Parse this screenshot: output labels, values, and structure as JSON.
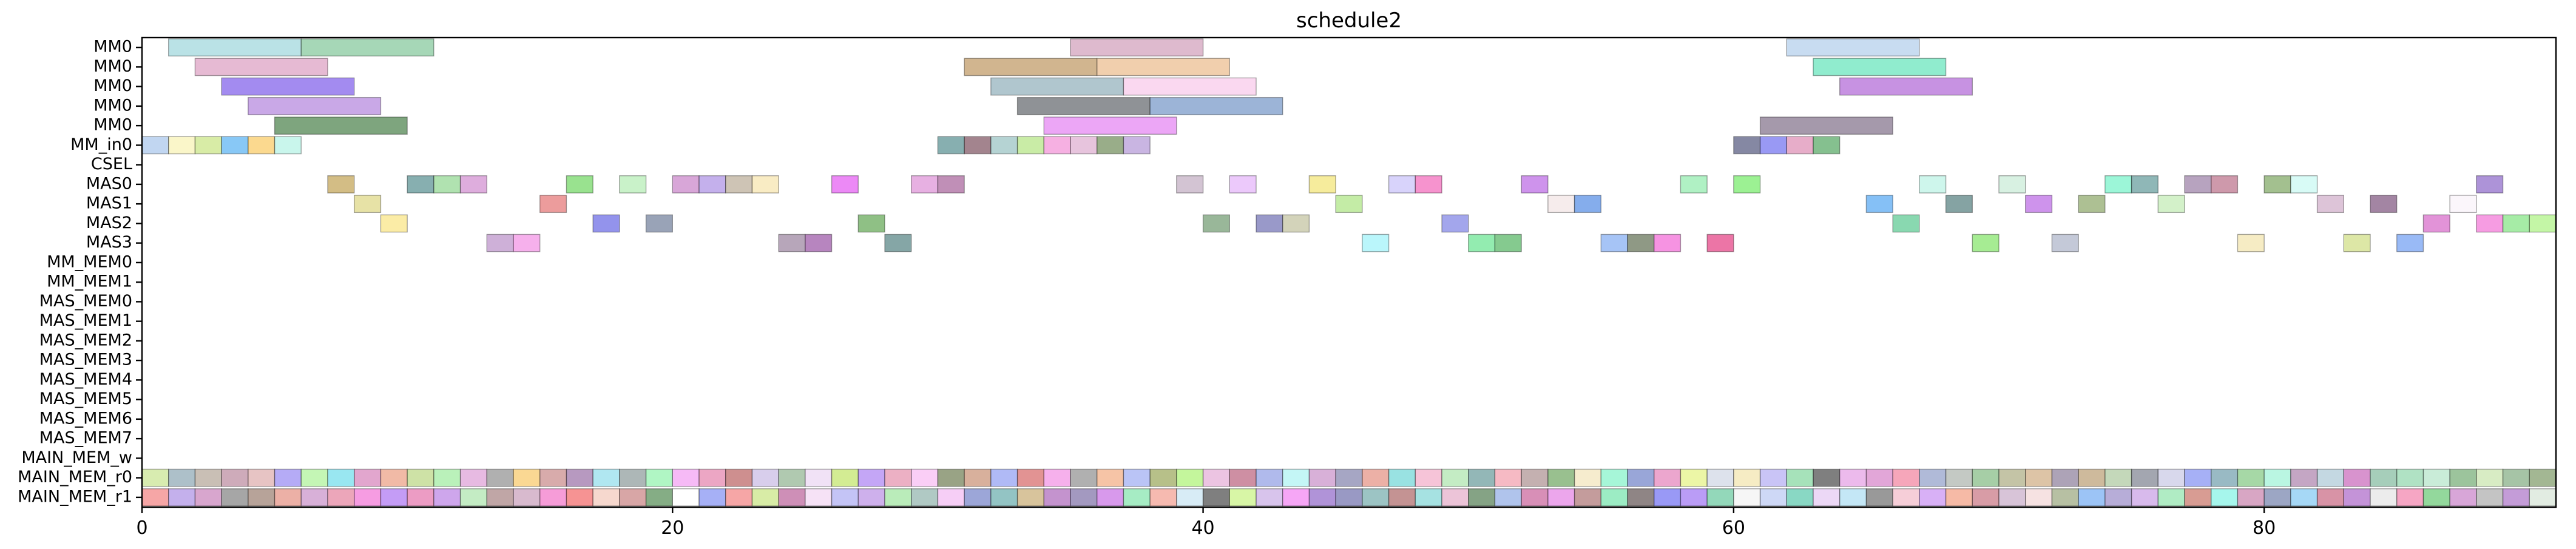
{
  "chart_data": {
    "type": "gantt",
    "title": "schedule2",
    "xlabel": "",
    "ylabel": "",
    "xlim": [
      0,
      91
    ],
    "xticks": [
      0,
      20,
      40,
      60,
      80
    ],
    "grid": false,
    "legend": "none",
    "rows": [
      "MM0",
      "MM0",
      "MM0",
      "MM0",
      "MM0",
      "MM_in0",
      "CSEL",
      "MAS0",
      "MAS1",
      "MAS2",
      "MAS3",
      "MM_MEM0",
      "MM_MEM1",
      "MAS_MEM0",
      "MAS_MEM1",
      "MAS_MEM2",
      "MAS_MEM3",
      "MAS_MEM4",
      "MAS_MEM5",
      "MAS_MEM6",
      "MAS_MEM7",
      "MAIN_MEM_w",
      "MAIN_MEM_r0",
      "MAIN_MEM_r1"
    ],
    "palette": [
      "#8fd0d6",
      "#6fbf8a",
      "#d78fb8",
      "#8a6bea",
      "#a872d8",
      "#2e7d32",
      "#c9a06a",
      "#e8b27a",
      "#7fa3b0",
      "#f7c0e6",
      "#555f66",
      "#6e93c4",
      "#b087c4",
      "#e87fe8",
      "#a6c7e8",
      "#4ce0b0",
      "#b25bd0",
      "#7a6a8a",
      "#f6d86a",
      "#5ec4f2",
      "#f8c24a",
      "#b8f2e0",
      "#5aa0a0",
      "#8b5e6e",
      "#aaa03a",
      "#a8c0d8",
      "#8ff080",
      "#d88fc8",
      "#4fa060",
      "#c4b88a",
      "#f5e06a",
      "#e85a8a",
      "#3d6a6e",
      "#6b2e7a",
      "#3a9a3a",
      "#6f4ec0",
      "#ffd27a",
      "#b6e16a",
      "#c1a8f0",
      "#ff7070",
      "#5fcf6a",
      "#a7f0f7",
      "#3f5f8f",
      "#909090",
      "#d0d080",
      "#e070a0",
      "#66ccaa",
      "#f7a070",
      "#9bbde8",
      "#c0e080"
    ],
    "bars": [
      {
        "row": 0,
        "start": 1,
        "end": 6,
        "color": "#8fd0d6"
      },
      {
        "row": 0,
        "start": 6,
        "end": 11,
        "color": "#6fbf8a"
      },
      {
        "row": 0,
        "start": 35,
        "end": 40,
        "color": "#c98fb0"
      },
      {
        "row": 0,
        "start": 62,
        "end": 67,
        "color": "#a6c7e8"
      },
      {
        "row": 1,
        "start": 2,
        "end": 7,
        "color": "#d78fb8"
      },
      {
        "row": 1,
        "start": 31,
        "end": 36,
        "color": "#b5884a"
      },
      {
        "row": 1,
        "start": 36,
        "end": 41,
        "color": "#e8b27a"
      },
      {
        "row": 1,
        "start": 63,
        "end": 68,
        "color": "#4ce0b0"
      },
      {
        "row": 2,
        "start": 3,
        "end": 8,
        "color": "#6a44e6"
      },
      {
        "row": 2,
        "start": 32,
        "end": 37,
        "color": "#7fa3b0"
      },
      {
        "row": 2,
        "start": 37,
        "end": 42,
        "color": "#f7c0e6"
      },
      {
        "row": 2,
        "start": 64,
        "end": 69,
        "color": "#a44fd0"
      },
      {
        "row": 3,
        "start": 4,
        "end": 9,
        "color": "#a872d8"
      },
      {
        "row": 3,
        "start": 33,
        "end": 38,
        "color": "#4a4f55"
      },
      {
        "row": 3,
        "start": 38,
        "end": 43,
        "color": "#5f86bf"
      },
      {
        "row": 4,
        "start": 5,
        "end": 10,
        "color": "#2e6e2e"
      },
      {
        "row": 4,
        "start": 34,
        "end": 39,
        "color": "#e070f0"
      },
      {
        "row": 4,
        "start": 61,
        "end": 66,
        "color": "#6e5a78"
      },
      {
        "row": 5,
        "start": 0,
        "end": 1,
        "color": "#9bbde8"
      },
      {
        "row": 5,
        "start": 1,
        "end": 2,
        "color": "#f7f0a8"
      },
      {
        "row": 5,
        "start": 2,
        "end": 3,
        "color": "#c0e070"
      },
      {
        "row": 5,
        "start": 3,
        "end": 4,
        "color": "#3fa7f0"
      },
      {
        "row": 5,
        "start": 4,
        "end": 5,
        "color": "#f8c24a"
      },
      {
        "row": 5,
        "start": 5,
        "end": 6,
        "color": "#a8f0e0"
      },
      {
        "row": 5,
        "start": 30,
        "end": 31,
        "color": "#3d7e80"
      },
      {
        "row": 5,
        "start": 31,
        "end": 32,
        "color": "#6b3848"
      },
      {
        "row": 5,
        "start": 32,
        "end": 33,
        "color": "#88b8b8"
      },
      {
        "row": 5,
        "start": 33,
        "end": 34,
        "color": "#a8e070"
      },
      {
        "row": 5,
        "start": 34,
        "end": 35,
        "color": "#f080d0"
      },
      {
        "row": 5,
        "start": 35,
        "end": 36,
        "color": "#d8a0c8"
      },
      {
        "row": 5,
        "start": 36,
        "end": 37,
        "color": "#5a7a40"
      },
      {
        "row": 5,
        "start": 37,
        "end": 38,
        "color": "#a888d0"
      },
      {
        "row": 5,
        "start": 60,
        "end": 61,
        "color": "#3a3f6a"
      },
      {
        "row": 5,
        "start": 61,
        "end": 62,
        "color": "#5a5aee"
      },
      {
        "row": 5,
        "start": 62,
        "end": 63,
        "color": "#d87aa8"
      },
      {
        "row": 5,
        "start": 63,
        "end": 64,
        "color": "#3a9a4a"
      },
      {
        "row": 7,
        "start": 7,
        "end": 8,
        "color": "#b8953a"
      },
      {
        "row": 7,
        "start": 10,
        "end": 11,
        "color": "#3d7e80"
      },
      {
        "row": 7,
        "start": 11,
        "end": 12,
        "color": "#7fd07f"
      },
      {
        "row": 7,
        "start": 12,
        "end": 13,
        "color": "#c97ac8"
      },
      {
        "row": 7,
        "start": 16,
        "end": 17,
        "color": "#5ad04a"
      },
      {
        "row": 7,
        "start": 18,
        "end": 19,
        "color": "#a8eaa8"
      },
      {
        "row": 7,
        "start": 20,
        "end": 21,
        "color": "#c070c0"
      },
      {
        "row": 7,
        "start": 21,
        "end": 22,
        "color": "#a080e0"
      },
      {
        "row": 7,
        "start": 22,
        "end": 23,
        "color": "#b0a088"
      },
      {
        "row": 7,
        "start": 23,
        "end": 24,
        "color": "#f5e0a0"
      },
      {
        "row": 7,
        "start": 26,
        "end": 27,
        "color": "#e040f0"
      },
      {
        "row": 7,
        "start": 29,
        "end": 30,
        "color": "#d880d0"
      },
      {
        "row": 7,
        "start": 30,
        "end": 31,
        "color": "#9a4a8a"
      },
      {
        "row": 7,
        "start": 39,
        "end": 40,
        "color": "#b8a0b8"
      },
      {
        "row": 7,
        "start": 41,
        "end": 42,
        "color": "#e0a8f8"
      },
      {
        "row": 7,
        "start": 44,
        "end": 45,
        "color": "#f0e060"
      },
      {
        "row": 7,
        "start": 47,
        "end": 48,
        "color": "#c0b8f8"
      },
      {
        "row": 7,
        "start": 48,
        "end": 49,
        "color": "#f050b0"
      },
      {
        "row": 7,
        "start": 52,
        "end": 53,
        "color": "#b050e0"
      },
      {
        "row": 7,
        "start": 58,
        "end": 59,
        "color": "#80e8a0"
      },
      {
        "row": 7,
        "start": 60,
        "end": 61,
        "color": "#60e850"
      },
      {
        "row": 7,
        "start": 67,
        "end": 68,
        "color": "#b0f0e0"
      },
      {
        "row": 7,
        "start": 70,
        "end": 71,
        "color": "#c0e8d0"
      },
      {
        "row": 7,
        "start": 74,
        "end": 75,
        "color": "#60f0c0"
      },
      {
        "row": 7,
        "start": 75,
        "end": 76,
        "color": "#4a8a8a"
      },
      {
        "row": 7,
        "start": 77,
        "end": 78,
        "color": "#8a6a98"
      },
      {
        "row": 7,
        "start": 78,
        "end": 79,
        "color": "#b05a78"
      },
      {
        "row": 7,
        "start": 80,
        "end": 81,
        "color": "#6a9a4a"
      },
      {
        "row": 7,
        "start": 81,
        "end": 82,
        "color": "#c0f8f0"
      },
      {
        "row": 7,
        "start": 88,
        "end": 89,
        "color": "#7a50c0"
      },
      {
        "row": 8,
        "start": 8,
        "end": 9,
        "color": "#d8d070"
      },
      {
        "row": 8,
        "start": 15,
        "end": 16,
        "color": "#e06060"
      },
      {
        "row": 8,
        "start": 45,
        "end": 46,
        "color": "#a0e070"
      },
      {
        "row": 8,
        "start": 53,
        "end": 54,
        "color": "#f0e0e0"
      },
      {
        "row": 8,
        "start": 54,
        "end": 55,
        "color": "#3a7ae0"
      },
      {
        "row": 8,
        "start": 65,
        "end": 66,
        "color": "#3a9af0"
      },
      {
        "row": 8,
        "start": 68,
        "end": 69,
        "color": "#3a6a6a"
      },
      {
        "row": 8,
        "start": 71,
        "end": 72,
        "color": "#b050e0"
      },
      {
        "row": 8,
        "start": 73,
        "end": 74,
        "color": "#7a9a50"
      },
      {
        "row": 8,
        "start": 76,
        "end": 77,
        "color": "#b8e8a8"
      },
      {
        "row": 8,
        "start": 82,
        "end": 83,
        "color": "#c8a0c0"
      },
      {
        "row": 8,
        "start": 84,
        "end": 85,
        "color": "#6a3a6a"
      },
      {
        "row": 8,
        "start": 87,
        "end": 88,
        "color": "#f8f0f8"
      },
      {
        "row": 9,
        "start": 9,
        "end": 10,
        "color": "#f8e070"
      },
      {
        "row": 9,
        "start": 17,
        "end": 18,
        "color": "#5050e0"
      },
      {
        "row": 9,
        "start": 19,
        "end": 20,
        "color": "#5a6a8a"
      },
      {
        "row": 9,
        "start": 27,
        "end": 28,
        "color": "#4a9a3a"
      },
      {
        "row": 9,
        "start": 40,
        "end": 41,
        "color": "#5a8a5a"
      },
      {
        "row": 9,
        "start": 42,
        "end": 43,
        "color": "#5a5aa8"
      },
      {
        "row": 9,
        "start": 43,
        "end": 44,
        "color": "#b8b890"
      },
      {
        "row": 9,
        "start": 49,
        "end": 50,
        "color": "#6a70e0"
      },
      {
        "row": 9,
        "start": 66,
        "end": 67,
        "color": "#40c080"
      },
      {
        "row": 9,
        "start": 86,
        "end": 87,
        "color": "#d050c0"
      },
      {
        "row": 9,
        "start": 88,
        "end": 89,
        "color": "#f060d0"
      },
      {
        "row": 9,
        "start": 89,
        "end": 90,
        "color": "#70e070"
      },
      {
        "row": 9,
        "start": 90,
        "end": 91,
        "color": "#a0f070"
      },
      {
        "row": 10,
        "start": 13,
        "end": 14,
        "color": "#b080c0"
      },
      {
        "row": 10,
        "start": 14,
        "end": 15,
        "color": "#f080e0"
      },
      {
        "row": 10,
        "start": 24,
        "end": 25,
        "color": "#8a7090"
      },
      {
        "row": 10,
        "start": 25,
        "end": 26,
        "color": "#8a3a98"
      },
      {
        "row": 10,
        "start": 28,
        "end": 29,
        "color": "#3a7070"
      },
      {
        "row": 10,
        "start": 46,
        "end": 47,
        "color": "#90f0f8"
      },
      {
        "row": 10,
        "start": 50,
        "end": 51,
        "color": "#50e080"
      },
      {
        "row": 10,
        "start": 51,
        "end": 52,
        "color": "#3aaa4a"
      },
      {
        "row": 10,
        "start": 55,
        "end": 56,
        "color": "#70a0f0"
      },
      {
        "row": 10,
        "start": 56,
        "end": 57,
        "color": "#4a5a3a"
      },
      {
        "row": 10,
        "start": 57,
        "end": 58,
        "color": "#f050d0"
      },
      {
        "row": 10,
        "start": 59,
        "end": 60,
        "color": "#e02070"
      },
      {
        "row": 10,
        "start": 69,
        "end": 70,
        "color": "#70e050"
      },
      {
        "row": 10,
        "start": 72,
        "end": 73,
        "color": "#a0a8c0"
      },
      {
        "row": 10,
        "start": 79,
        "end": 80,
        "color": "#f0e0a0"
      },
      {
        "row": 10,
        "start": 83,
        "end": 84,
        "color": "#c8d870"
      },
      {
        "row": 10,
        "start": 85,
        "end": 86,
        "color": "#5a90f0"
      }
    ],
    "memory_rows": [
      {
        "row": 22,
        "colors": [
          "#c0e080",
          "#7a9aa8",
          "#a89888",
          "#b07890",
          "#d8a0a0",
          "#8878f0",
          "#a0f088",
          "#5ad8e8",
          "#d070b0",
          "#e89070",
          "#b0d070",
          "#90e890",
          "#d890d0",
          "#808080",
          "#f7c050",
          "#c07878",
          "#8a5a9a",
          "#80d8e8",
          "#7a8a8a",
          "#80f0a0",
          "#f090f0",
          "#e070a0",
          "#b04a4a",
          "#c0b0e0",
          "#80a880",
          "#e8d0f0",
          "#b8e050",
          "#a070f0",
          "#e080a0",
          "#f7b0f0",
          "#5a6a3a",
          "#c08060",
          "#8090f0",
          "#d05050",
          "#f080e0",
          "#808080",
          "#f0a070",
          "#90a0f0",
          "#8a9a40",
          "#a0f060",
          "#e0a0d0",
          "#b04a6a",
          "#8090e0",
          "#a0f0f0",
          "#c080c0",
          "#7070a0",
          "#e08070",
          "#5ad0d0",
          "#f0a0c0",
          "#a0e0a0",
          "#508a8a",
          "#f090a0",
          "#a08080",
          "#5a9a4a",
          "#f0e0b0",
          "#70f0c0",
          "#5a70c0",
          "#e070b0",
          "#e0f070",
          "#c8d0e0",
          "#f0e0a0",
          "#a8a0f0",
          "#70d090",
          "#303030",
          "#e090e0",
          "#d070c0",
          "#f07090",
          "#8090c0",
          "#a0a8a0",
          "#70b070",
          "#a0a070",
          "#c8a070",
          "#7a6a8a",
          "#b09060",
          "#a0c090",
          "#6a7080",
          "#c0c0e0",
          "#7080f0",
          "#5a90a0",
          "#70c070",
          "#90f0d0",
          "#a070a0",
          "#a0c0d0",
          "#c050b0",
          "#70b090",
          "#80d0a0",
          "#a8e0c0",
          "#60a060",
          "#c0e0a0",
          "#70a070",
          "#6a8a50"
        ]
      },
      {
        "row": 23,
        "colors": [
          "#f07070",
          "#a080e0",
          "#c070b0",
          "#707070",
          "#8a6a5a",
          "#e08070",
          "#c080c0",
          "#e07090",
          "#f060d0",
          "#a060f0",
          "#e060a0",
          "#b070e0",
          "#a0e0a0",
          "#9a7070",
          "#c090b0",
          "#f060c0",
          "#f05050",
          "#f0c0b0",
          "#c07070",
          "#3a7a3a",
          "#ffffff",
          "#7080f0",
          "#f07070",
          "#c0e070",
          "#b04a8a",
          "#f0d0f0",
          "#a0a0f0",
          "#b080e0",
          "#90e090",
          "#80a8a0",
          "#f0b0f0",
          "#6070c0",
          "#50a0a0",
          "#c0a060",
          "#a050b0",
          "#6a5a9a",
          "#c05ae0",
          "#70e0a0",
          "#f09080",
          "#c0e0f0",
          "#303030",
          "#c0f070",
          "#c0a0e0",
          "#f070f0",
          "#8050c0",
          "#5a5aa0",
          "#60a0a0",
          "#a05050",
          "#70d0d0",
          "#e0a0c0",
          "#3a6a3a",
          "#80a0e0",
          "#c04a8a",
          "#e070e0",
          "#a06060",
          "#60e0a0",
          "#4a3a3a",
          "#5a5af0",
          "#9060f0",
          "#50c090",
          "#f0f0f0",
          "#b0c0f0",
          "#40c0a0",
          "#e0c0f0",
          "#a0d8f0",
          "#5a5a5a",
          "#f0b0c0",
          "#c080f0",
          "#f09070",
          "#c06070",
          "#c0a0c0",
          "#f0d0d0",
          "#8a9a6a",
          "#60a0f0",
          "#8a7ac0",
          "#c090e0",
          "#80e0a0",
          "#c06050",
          "#70f0e0",
          "#c070a0",
          "#6070a0",
          "#70c0f0",
          "#c05070",
          "#a050c0",
          "#e0e0e0",
          "#f070a0",
          "#50c060",
          "#c070c0",
          "#a0a0a0",
          "#a060c0",
          "#d0e0d0"
        ]
      }
    ]
  }
}
